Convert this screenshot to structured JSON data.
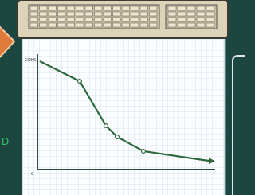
{
  "graph": {
    "axis_label": "GOKS",
    "origin_label": "C"
  }
}
